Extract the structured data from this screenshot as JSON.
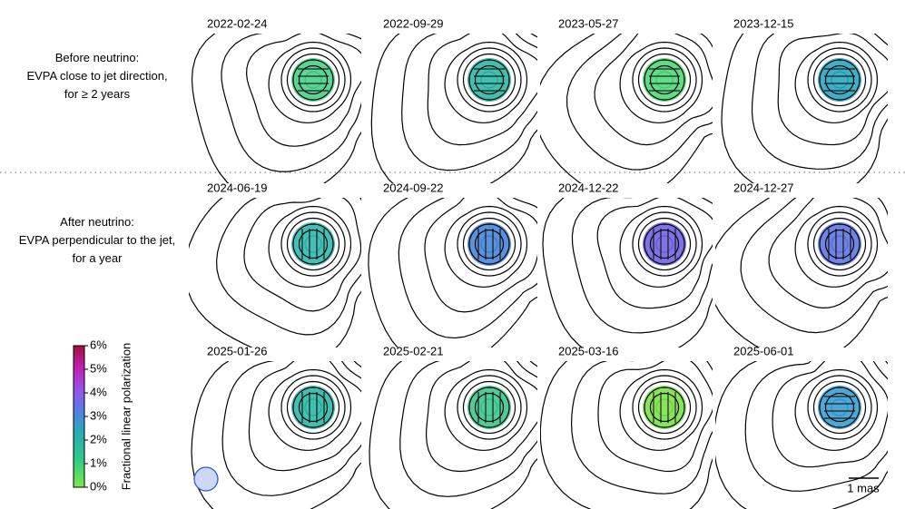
{
  "row_labels": [
    [
      "Before neutrino:",
      "EVPA close to jet direction,",
      "for ≥ 2 years"
    ],
    [
      "After neutrino:",
      "EVPA perpendicular to the jet,",
      "for a year"
    ]
  ],
  "dates": [
    [
      "2022-02-24",
      "2022-09-29",
      "2023-05-27",
      "2023-12-15"
    ],
    [
      "2024-06-19",
      "2024-09-22",
      "2024-12-22",
      "2024-12-27"
    ],
    [
      "2025-01-26",
      "2025-02-21",
      "2025-03-16",
      "2025-06-01"
    ]
  ],
  "colorbar": {
    "label": "Fractional linear polarization",
    "lim": [
      0,
      6
    ],
    "ticks": [
      {
        "value": 0,
        "label": "0%"
      },
      {
        "value": 1,
        "label": "1%"
      },
      {
        "value": 2,
        "label": "2%"
      },
      {
        "value": 3,
        "label": "3%"
      },
      {
        "value": 4,
        "label": "4%"
      },
      {
        "value": 5,
        "label": "5%"
      },
      {
        "value": 6,
        "label": "6%"
      }
    ]
  },
  "scale_bar": "1 mas"
}
